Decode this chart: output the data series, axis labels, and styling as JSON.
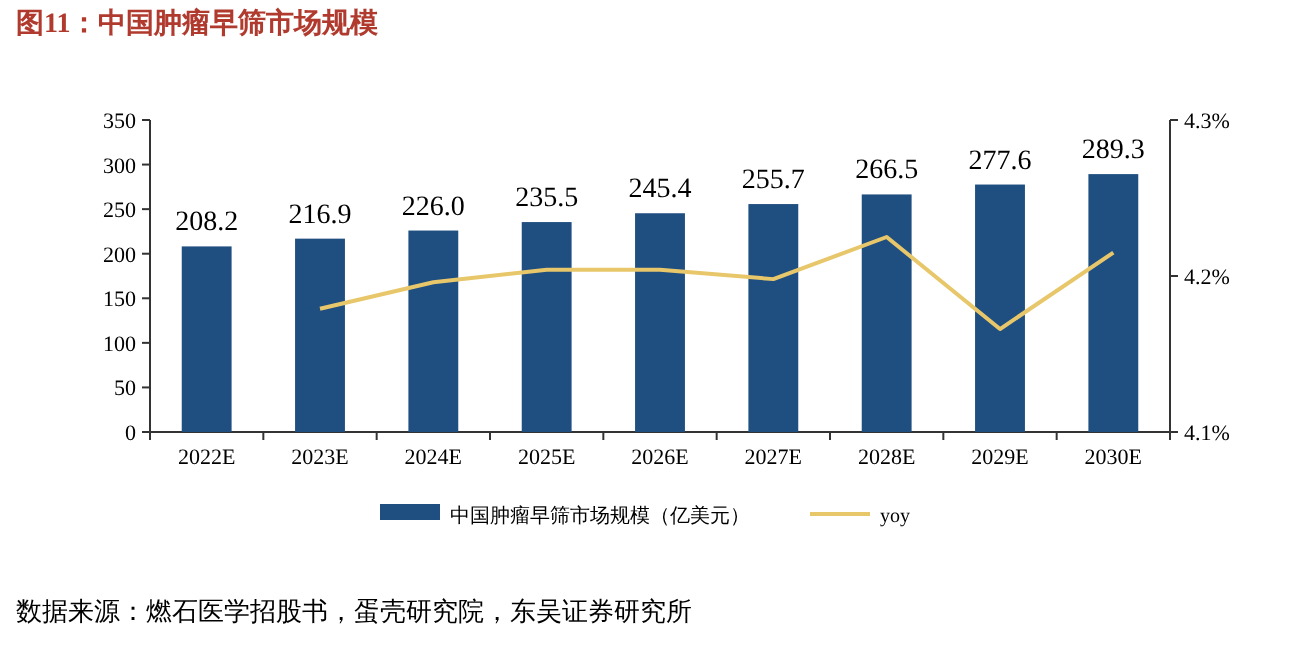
{
  "chart_data": {
    "type": "bar",
    "title": "图11：中国肿瘤早筛市场规模",
    "annotations": [
      "数据来源：燃石医学招股书，蛋壳研究院，东吴证券研究所"
    ],
    "categories": [
      "2022E",
      "2023E",
      "2024E",
      "2025E",
      "2026E",
      "2027E",
      "2028E",
      "2029E",
      "2030E"
    ],
    "series": [
      {
        "name": "中国肿瘤早筛市场规模（亿美元）",
        "color": "#1f4e80",
        "values": [
          208.2,
          216.9,
          226.0,
          235.5,
          245.4,
          255.7,
          266.5,
          277.6,
          289.3
        ],
        "value_labels": [
          "208.2",
          "216.9",
          "226.0",
          "235.5",
          "245.4",
          "255.7",
          "266.5",
          "277.6",
          "289.3"
        ]
      },
      {
        "name": "yoy",
        "type": "line",
        "axis": "y2",
        "color": "#e8c76a",
        "values": [
          null,
          4.179,
          4.196,
          4.204,
          4.204,
          4.198,
          4.225,
          4.166,
          4.215
        ]
      }
    ],
    "ylim": [
      0,
      350
    ],
    "yticks": [
      0,
      50,
      100,
      150,
      200,
      250,
      300,
      350
    ],
    "y2lim": [
      4.1,
      4.3
    ],
    "y2ticks": [
      {
        "value": 4.1,
        "label": "4.1%"
      },
      {
        "value": 4.2,
        "label": "4.2%"
      },
      {
        "value": 4.3,
        "label": "4.3%"
      }
    ],
    "legend": "bottom",
    "grid": false
  }
}
